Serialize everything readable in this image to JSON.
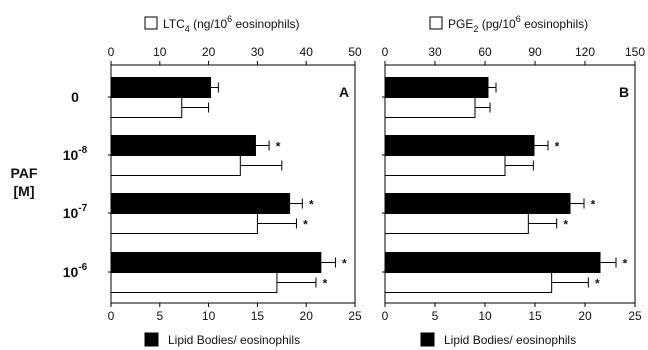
{
  "chart_data": [
    {
      "type": "bar",
      "panel_label": "A",
      "yaxis_title": [
        "PAF",
        "[M]"
      ],
      "categories": [
        {
          "base": "0",
          "exp": ""
        },
        {
          "base": "10",
          "exp": "-8"
        },
        {
          "base": "10",
          "exp": "-7"
        },
        {
          "base": "10",
          "exp": "-6"
        }
      ],
      "top_axis": {
        "label_parts": [
          "LTC",
          "4",
          " (ng/10",
          "6",
          " eosinophils)"
        ],
        "lim": [
          0,
          50
        ],
        "ticks": [
          "0",
          "10",
          "20",
          "30",
          "40",
          "50"
        ]
      },
      "bottom_axis": {
        "label": "Lipid Bodies/ eosinophils",
        "lim": [
          0,
          25
        ],
        "ticks": [
          "0",
          "5",
          "10",
          "15",
          "20",
          "25"
        ]
      },
      "series": [
        {
          "name": "Lipid Bodies/ eosinophils",
          "axis": "bottom",
          "color": "#000000",
          "values": [
            10.2,
            14.8,
            18.3,
            21.5
          ],
          "errors": [
            0.8,
            1.4,
            1.3,
            1.5
          ],
          "significant": [
            false,
            true,
            true,
            true
          ]
        },
        {
          "name": "LTC4 (ng/10^6 eosinophils)",
          "axis": "top",
          "color": "#ffffff",
          "values": [
            14.5,
            26.5,
            30.0,
            34.0
          ],
          "errors": [
            5.5,
            8.5,
            8.0,
            8.0
          ],
          "significant": [
            false,
            false,
            true,
            true
          ]
        }
      ]
    },
    {
      "type": "bar",
      "panel_label": "B",
      "categories": [
        {
          "base": "0",
          "exp": ""
        },
        {
          "base": "10",
          "exp": "-8"
        },
        {
          "base": "10",
          "exp": "-7"
        },
        {
          "base": "10",
          "exp": "-6"
        }
      ],
      "top_axis": {
        "label_parts": [
          "PGE",
          "2",
          " (pg/10",
          "6",
          " eosinophils)"
        ],
        "lim": [
          0,
          150
        ],
        "ticks": [
          "0",
          "30",
          "60",
          "90",
          "120",
          "150"
        ]
      },
      "bottom_axis": {
        "label": "Lipid Bodies/ eosinophils",
        "lim": [
          0,
          25
        ],
        "ticks": [
          "0",
          "5",
          "10",
          "15",
          "20",
          "25"
        ]
      },
      "series": [
        {
          "name": "Lipid Bodies/ eosinophils",
          "axis": "bottom",
          "color": "#000000",
          "values": [
            10.3,
            14.9,
            18.5,
            21.5
          ],
          "errors": [
            0.8,
            1.4,
            1.4,
            1.6
          ],
          "significant": [
            false,
            true,
            true,
            true
          ]
        },
        {
          "name": "PGE2 (pg/10^6 eosinophils)",
          "axis": "top",
          "color": "#ffffff",
          "values": [
            54,
            72,
            86,
            100
          ],
          "errors": [
            9,
            17,
            17,
            22
          ],
          "significant": [
            false,
            false,
            true,
            true
          ]
        }
      ]
    }
  ]
}
